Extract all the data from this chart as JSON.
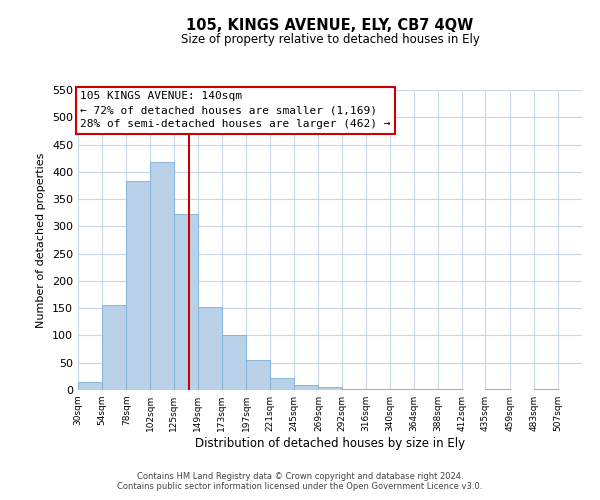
{
  "title": "105, KINGS AVENUE, ELY, CB7 4QW",
  "subtitle": "Size of property relative to detached houses in Ely",
  "xlabel": "Distribution of detached houses by size in Ely",
  "ylabel": "Number of detached properties",
  "bar_left_edges": [
    30,
    54,
    78,
    102,
    125,
    149,
    173,
    197,
    221,
    245,
    269,
    292,
    316,
    340,
    364,
    388,
    412,
    435,
    459,
    483
  ],
  "bar_heights": [
    15,
    155,
    383,
    418,
    322,
    152,
    100,
    55,
    22,
    10,
    5,
    2,
    1,
    1,
    1,
    1,
    0,
    1,
    0,
    1
  ],
  "bar_widths": [
    24,
    24,
    24,
    23,
    24,
    24,
    24,
    24,
    24,
    24,
    23,
    24,
    24,
    24,
    24,
    24,
    23,
    24,
    24,
    24
  ],
  "tick_labels": [
    "30sqm",
    "54sqm",
    "78sqm",
    "102sqm",
    "125sqm",
    "149sqm",
    "173sqm",
    "197sqm",
    "221sqm",
    "245sqm",
    "269sqm",
    "292sqm",
    "316sqm",
    "340sqm",
    "364sqm",
    "388sqm",
    "412sqm",
    "435sqm",
    "459sqm",
    "483sqm",
    "507sqm"
  ],
  "bar_color": "#b8d0e8",
  "bar_edge_color": "#7aafd4",
  "property_line_x": 140,
  "property_line_color": "#cc0000",
  "ylim": [
    0,
    550
  ],
  "yticks": [
    0,
    50,
    100,
    150,
    200,
    250,
    300,
    350,
    400,
    450,
    500,
    550
  ],
  "annotation_title": "105 KINGS AVENUE: 140sqm",
  "annotation_line1": "← 72% of detached houses are smaller (1,169)",
  "annotation_line2": "28% of semi-detached houses are larger (462) →",
  "footer1": "Contains HM Land Registry data © Crown copyright and database right 2024.",
  "footer2": "Contains public sector information licensed under the Open Government Licence v3.0.",
  "background_color": "#ffffff",
  "grid_color": "#c8d8e8"
}
